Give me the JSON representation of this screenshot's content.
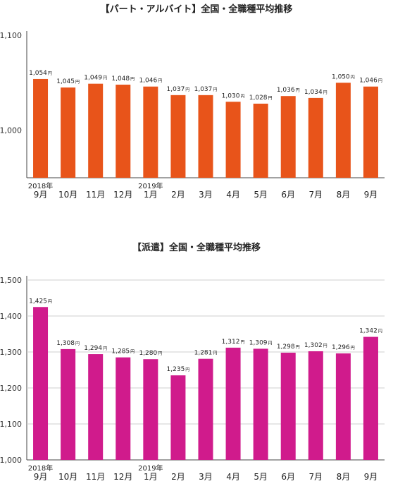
{
  "chart_data": [
    {
      "type": "bar",
      "title": "【パート・アルバイト】全国・全職種平均推移",
      "categories": [
        "9月",
        "10月",
        "11月",
        "12月",
        "1月",
        "2月",
        "3月",
        "4月",
        "5月",
        "6月",
        "7月",
        "8月",
        "9月"
      ],
      "year_labels": {
        "0": "2018年",
        "4": "2019年"
      },
      "values": [
        1054,
        1045,
        1049,
        1048,
        1046,
        1037,
        1037,
        1030,
        1028,
        1036,
        1034,
        1050,
        1046
      ],
      "value_labels": [
        "1,054",
        "1,045",
        "1,049",
        "1,048",
        "1,046",
        "1,037",
        "1,037",
        "1,030",
        "1,028",
        "1,036",
        "1,034",
        "1,050",
        "1,046"
      ],
      "unit": "円",
      "yticks": [
        "1,000",
        "1,100"
      ],
      "ytick_values": [
        1000,
        1100
      ],
      "ylim": [
        950,
        1100
      ],
      "color": "#e8541a",
      "xlabel": "",
      "ylabel": ""
    },
    {
      "type": "bar",
      "title": "【派遣】全国・全職種平均推移",
      "categories": [
        "9月",
        "10月",
        "11月",
        "12月",
        "1月",
        "2月",
        "3月",
        "4月",
        "5月",
        "6月",
        "7月",
        "8月",
        "9月"
      ],
      "year_labels": {
        "0": "2018年",
        "4": "2019年"
      },
      "values": [
        1425,
        1308,
        1294,
        1285,
        1280,
        1235,
        1281,
        1312,
        1309,
        1298,
        1302,
        1296,
        1342
      ],
      "value_labels": [
        "1,425",
        "1,308",
        "1,294",
        "1,285",
        "1,280",
        "1,235",
        "1,281",
        "1,312",
        "1,309",
        "1,298",
        "1,302",
        "1,296",
        "1,342"
      ],
      "unit": "円",
      "yticks": [
        "1,000",
        "1,100",
        "1,200",
        "1,300",
        "1,400",
        "1,500"
      ],
      "ytick_values": [
        1000,
        1100,
        1200,
        1300,
        1400,
        1500
      ],
      "ylim": [
        1000,
        1500
      ],
      "color": "#d01b8c",
      "xlabel": "",
      "ylabel": ""
    }
  ]
}
